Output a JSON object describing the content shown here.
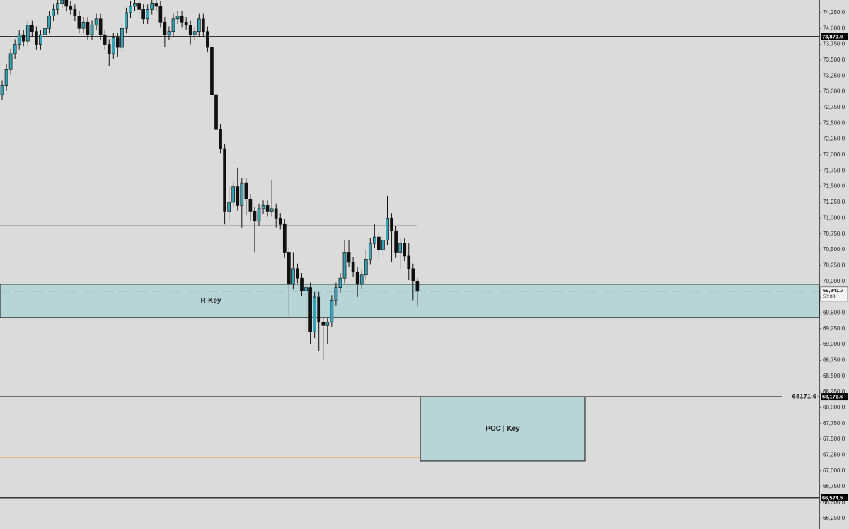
{
  "chart_data": {
    "type": "candlestick",
    "up_color": "#35a3b5",
    "down_color": "#111111",
    "open": [
      72950,
      73100,
      73350,
      73600,
      73750,
      73900,
      73800,
      74050,
      73950,
      73750,
      73900,
      74000,
      74200,
      74300,
      74400,
      74450,
      74350,
      74300,
      74200,
      74000,
      74100,
      73900,
      74050,
      74150,
      73900,
      73750,
      73600,
      73850,
      73700,
      74000,
      74250,
      74350,
      74400,
      74300,
      74150,
      74300,
      74400,
      74350,
      74100,
      73900,
      73950,
      74150,
      74200,
      74100,
      74050,
      73900,
      73950,
      74150,
      73950,
      73700,
      72950,
      72400,
      72100,
      71100,
      71250,
      71500,
      71200,
      71550,
      71300,
      71100,
      70950,
      71150,
      71200,
      71100,
      71150,
      71000,
      70900,
      70450,
      69950,
      70200,
      70050,
      69850,
      69900,
      69200,
      69750,
      69350,
      69300,
      69350,
      69700,
      69900,
      70050,
      70450,
      70300,
      70150,
      69950,
      70100,
      70350,
      70600,
      70700,
      70500,
      70650,
      71000,
      70800,
      70450,
      70600,
      70400,
      70200,
      70000
    ],
    "high": [
      73180,
      73430,
      73680,
      73830,
      73980,
      73980,
      74130,
      74130,
      74030,
      73980,
      74080,
      74280,
      74380,
      74480,
      74530,
      74530,
      74430,
      74380,
      74280,
      74180,
      74180,
      74130,
      74230,
      74230,
      73980,
      73830,
      73930,
      73930,
      74080,
      74330,
      74430,
      74480,
      74480,
      74380,
      74380,
      74480,
      74480,
      74430,
      74180,
      74030,
      74230,
      74280,
      74280,
      74180,
      74130,
      74030,
      74230,
      74230,
      74030,
      73780,
      73030,
      72480,
      72180,
      71500,
      71580,
      71800,
      71630,
      71630,
      71380,
      71180,
      71230,
      71280,
      71280,
      71600,
      71230,
      71080,
      70980,
      70530,
      70450,
      70280,
      70130,
      69980,
      69980,
      69830,
      69830,
      69430,
      69430,
      69780,
      69980,
      70130,
      70650,
      70650,
      70380,
      70230,
      70180,
      70500,
      70680,
      70900,
      70780,
      70730,
      71350,
      71080,
      70880,
      70680,
      70680,
      70600,
      70280,
      70050
    ],
    "low": [
      72870,
      73020,
      73270,
      73520,
      73670,
      73720,
      73720,
      73870,
      73670,
      73670,
      73820,
      73920,
      74120,
      74220,
      74320,
      74270,
      74220,
      74120,
      73920,
      73920,
      73820,
      73820,
      73970,
      73820,
      73670,
      73400,
      73520,
      73550,
      73620,
      73920,
      74170,
      74270,
      74220,
      74070,
      74070,
      74220,
      74270,
      74020,
      73700,
      73820,
      73870,
      74070,
      74020,
      73970,
      73750,
      73820,
      73870,
      73870,
      73620,
      72870,
      72320,
      72020,
      70900,
      70950,
      71170,
      71120,
      70850,
      71050,
      70950,
      70450,
      70870,
      71070,
      71020,
      71020,
      70850,
      70820,
      70370,
      69450,
      69870,
      69970,
      69770,
      69100,
      69000,
      69100,
      68900,
      68750,
      69000,
      69270,
      69620,
      69820,
      69970,
      70220,
      70070,
      69750,
      69870,
      70020,
      70270,
      70520,
      70350,
      70420,
      70570,
      70300,
      70370,
      70200,
      70320,
      70020,
      69700,
      69600
    ],
    "close": [
      73100,
      73350,
      73600,
      73750,
      73900,
      73800,
      74050,
      73950,
      73750,
      73900,
      74000,
      74200,
      74300,
      74400,
      74450,
      74350,
      74300,
      74200,
      74000,
      74100,
      73900,
      74050,
      74150,
      73900,
      73750,
      73600,
      73850,
      73700,
      74000,
      74250,
      74350,
      74400,
      74300,
      74150,
      74300,
      74400,
      74350,
      74100,
      73900,
      73950,
      74150,
      74200,
      74100,
      74050,
      73900,
      73950,
      74150,
      73950,
      73700,
      72950,
      72400,
      72100,
      71100,
      71250,
      71500,
      71200,
      71550,
      71300,
      71100,
      70950,
      71150,
      71200,
      71100,
      71150,
      71000,
      70900,
      70450,
      69950,
      70200,
      70050,
      69850,
      69900,
      69200,
      69750,
      69350,
      69300,
      69350,
      69700,
      69900,
      70050,
      70450,
      70300,
      70150,
      69950,
      70100,
      70350,
      70600,
      70700,
      70500,
      70650,
      71000,
      70800,
      70450,
      70600,
      70400,
      70200,
      70000,
      69841.7
    ],
    "ylim": [
      66080,
      74450
    ],
    "yticks": [
      {
        "value": 66250,
        "label": "66,250.0"
      },
      {
        "value": 66500,
        "label": "66,500.0"
      },
      {
        "value": 66750,
        "label": "66,750.0"
      },
      {
        "value": 67000,
        "label": "67,000.0"
      },
      {
        "value": 67250,
        "label": "67,250.0"
      },
      {
        "value": 67500,
        "label": "67,500.0"
      },
      {
        "value": 67750,
        "label": "67,750.0"
      },
      {
        "value": 68000,
        "label": "68,000.0"
      },
      {
        "value": 68250,
        "label": "68,250.0"
      },
      {
        "value": 68500,
        "label": "68,500.0"
      },
      {
        "value": 68750,
        "label": "68,750.0"
      },
      {
        "value": 69000,
        "label": "69,000.0"
      },
      {
        "value": 69250,
        "label": "69,250.0"
      },
      {
        "value": 69500,
        "label": "69,500.0"
      },
      {
        "value": 69750,
        "label": "69,750.0"
      },
      {
        "value": 70000,
        "label": "70,000.0"
      },
      {
        "value": 70250,
        "label": "70,250.0"
      },
      {
        "value": 70500,
        "label": "70,500.0"
      },
      {
        "value": 70750,
        "label": "70,750.0"
      },
      {
        "value": 71000,
        "label": "71,000.0"
      },
      {
        "value": 71250,
        "label": "71,250.0"
      },
      {
        "value": 71500,
        "label": "71,500.0"
      },
      {
        "value": 71750,
        "label": "71,750.0"
      },
      {
        "value": 72000,
        "label": "72,000.0"
      },
      {
        "value": 72250,
        "label": "72,250.0"
      },
      {
        "value": 72500,
        "label": "72,500.0"
      },
      {
        "value": 72750,
        "label": "72,750.0"
      },
      {
        "value": 73000,
        "label": "73,000.0"
      },
      {
        "value": 73250,
        "label": "73,250.0"
      },
      {
        "value": 73500,
        "label": "73,500.0"
      },
      {
        "value": 73750,
        "label": "73,750.0"
      },
      {
        "value": 74000,
        "label": "74,000.0"
      },
      {
        "value": 74250,
        "label": "74,250.0"
      }
    ],
    "zones": [
      {
        "label": "R-Key",
        "low": 69427,
        "high": 69953,
        "color": "#b7d4d7"
      },
      {
        "label": "POC | Key",
        "low": 67155,
        "high": 68171.6,
        "color": "#b7d4d7"
      }
    ],
    "levels": [
      {
        "value": 73870,
        "color": "#000000"
      },
      {
        "value": 70882,
        "color": "#8a8a8a"
      },
      {
        "value": 68171.6,
        "color": "#000000",
        "label": "68171.6"
      },
      {
        "value": 67211,
        "color": "#f0a040"
      },
      {
        "value": 66574.5,
        "color": "#000000"
      }
    ],
    "price_markers": [
      {
        "value": 73870,
        "label": "73,870.0"
      },
      {
        "value": 68171.6,
        "label": "68,171.6"
      },
      {
        "value": 66574.5,
        "label": "66,574.5"
      }
    ],
    "last_price": {
      "value": 69841.7,
      "label": "69,841.7",
      "countdown": "50:03"
    }
  }
}
